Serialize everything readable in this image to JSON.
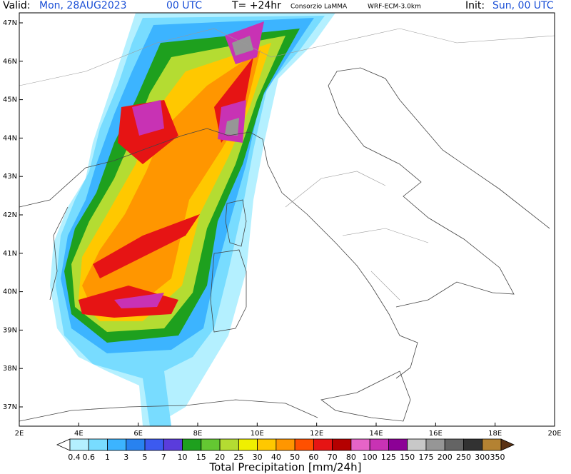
{
  "header": {
    "valid_label": "Valid:",
    "valid_date": "Mon, 28AUG2023",
    "valid_time": "00 UTC",
    "forecast_step": "T= +24hr",
    "source": "Consorzio LaMMA",
    "model": "WRF-ECM-3.0km",
    "init_label": "Init:",
    "init_time": "Sun, 00 UTC"
  },
  "map": {
    "lon_labels": [
      "2E",
      "4E",
      "6E",
      "8E",
      "10E",
      "12E",
      "14E",
      "16E",
      "18E",
      "20E"
    ],
    "lat_labels": [
      "37N",
      "38N",
      "39N",
      "40N",
      "41N",
      "42N",
      "43N",
      "44N",
      "45N",
      "46N",
      "47N"
    ]
  },
  "colorbar": {
    "title": "Total Precipitation [mm/24h]",
    "labels": [
      "0.4",
      "0.6",
      "1",
      "3",
      "5",
      "7",
      "10",
      "15",
      "20",
      "25",
      "30",
      "40",
      "50",
      "60",
      "70",
      "80",
      "100",
      "125",
      "150",
      "175",
      "200",
      "250",
      "300",
      "350"
    ],
    "colors": [
      "#ffffff",
      "#b4f0ff",
      "#78dcff",
      "#3cb4ff",
      "#2882f0",
      "#3c5af0",
      "#5a3cdc",
      "#1ea01e",
      "#64c832",
      "#b4dc32",
      "#f0f000",
      "#ffc800",
      "#ff9600",
      "#ff5000",
      "#e61414",
      "#b40000",
      "#e664c8",
      "#c832b4",
      "#8c0096",
      "#c8c8c8",
      "#969696",
      "#646464",
      "#323232",
      "#b48232",
      "#8c5a1e",
      "#5a3214"
    ]
  }
}
